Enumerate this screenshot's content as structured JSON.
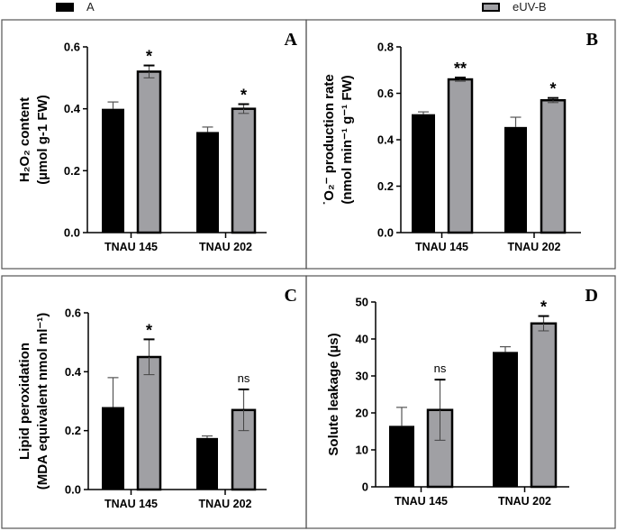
{
  "legend": [
    {
      "label": "A",
      "color": "#000000"
    },
    {
      "label": "eUV-B",
      "color": "#a0a0a4"
    }
  ],
  "chart_data": [
    {
      "panel": "A",
      "type": "bar",
      "categories": [
        "TNAU 145",
        "TNAU 202"
      ],
      "ylabel": [
        "H₂O₂ content",
        "(µmol g-1 FW)"
      ],
      "ylim": [
        0,
        0.6
      ],
      "yticks": [
        0.0,
        0.2,
        0.4,
        0.6
      ],
      "tick_decimals": 1,
      "series": [
        {
          "name": "A",
          "values": [
            0.4,
            0.325
          ],
          "errors": [
            0.022,
            0.016
          ]
        },
        {
          "name": "eUV-B",
          "values": [
            0.52,
            0.4
          ],
          "errors": [
            0.02,
            0.015
          ]
        }
      ],
      "annotations": [
        "*",
        "*"
      ]
    },
    {
      "panel": "B",
      "type": "bar",
      "categories": [
        "TNAU 145",
        "TNAU 202"
      ],
      "ylabel": [
        "˙O₂⁻ production rate",
        "(nmol min⁻¹ g⁻¹ FW)"
      ],
      "ylim": [
        0,
        0.8
      ],
      "yticks": [
        0.0,
        0.2,
        0.4,
        0.6,
        0.8
      ],
      "tick_decimals": 1,
      "series": [
        {
          "name": "A",
          "values": [
            0.51,
            0.455
          ],
          "errors": [
            0.01,
            0.042
          ]
        },
        {
          "name": "eUV-B",
          "values": [
            0.66,
            0.57
          ],
          "errors": [
            0.008,
            0.01
          ]
        }
      ],
      "annotations": [
        "**",
        "*"
      ]
    },
    {
      "panel": "C",
      "type": "bar",
      "categories": [
        "TNAU 145",
        "TNAU 202"
      ],
      "ylabel": [
        "Lipid peroxidation",
        "(MDA equivalent nmol ml⁻¹)"
      ],
      "ylim": [
        0,
        0.6
      ],
      "yticks": [
        0.0,
        0.2,
        0.4,
        0.6
      ],
      "tick_decimals": 1,
      "series": [
        {
          "name": "A",
          "values": [
            0.28,
            0.175
          ],
          "errors": [
            0.1,
            0.007
          ]
        },
        {
          "name": "eUV-B",
          "values": [
            0.45,
            0.27
          ],
          "errors": [
            0.06,
            0.07
          ]
        }
      ],
      "annotations": [
        "*",
        "ns"
      ]
    },
    {
      "panel": "D",
      "type": "bar",
      "categories": [
        "TNAU 145",
        "TNAU 202"
      ],
      "ylabel": [
        "Solute leakage (µs)"
      ],
      "ylim": [
        0,
        50
      ],
      "yticks": [
        0,
        10,
        20,
        30,
        40,
        50
      ],
      "tick_decimals": 0,
      "series": [
        {
          "name": "A",
          "values": [
            16.5,
            36.5
          ],
          "errors": [
            5.0,
            1.4
          ]
        },
        {
          "name": "eUV-B",
          "values": [
            20.8,
            44.2
          ],
          "errors": [
            8.2,
            2.0
          ]
        }
      ],
      "annotations": [
        "ns",
        "*"
      ]
    }
  ]
}
